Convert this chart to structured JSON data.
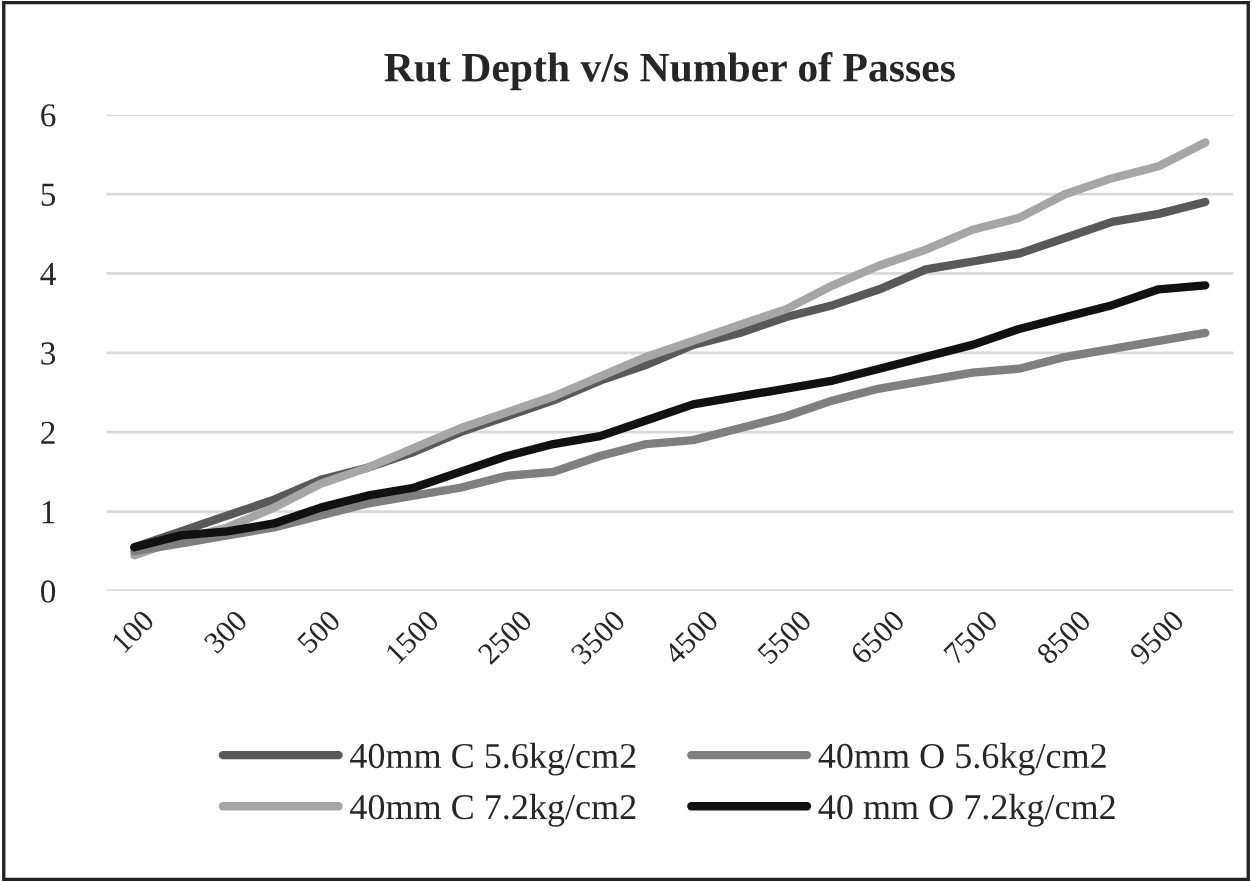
{
  "chart_data": {
    "type": "line",
    "title": "Rut Depth v/s Number of Passes",
    "categories": [
      "100",
      null,
      "300",
      null,
      "500",
      null,
      "1500",
      null,
      "2500",
      null,
      "3500",
      null,
      "4500",
      null,
      "5500",
      null,
      "6500",
      null,
      "7500",
      null,
      "8500",
      null,
      "9500",
      null
    ],
    "series": [
      {
        "name": "40mm C 5.6kg/cm2",
        "color": "#595959",
        "values": [
          0.55,
          0.75,
          0.95,
          1.15,
          1.4,
          1.55,
          1.75,
          2.0,
          2.2,
          2.4,
          2.65,
          2.85,
          3.1,
          3.25,
          3.45,
          3.6,
          3.8,
          4.05,
          4.15,
          4.25,
          4.45,
          4.65,
          4.75,
          4.9
        ]
      },
      {
        "name": "40mm C 7.2kg/cm2",
        "color": "#a6a6a6",
        "values": [
          0.45,
          0.65,
          0.8,
          1.05,
          1.35,
          1.55,
          1.8,
          2.05,
          2.25,
          2.45,
          2.7,
          2.95,
          3.15,
          3.35,
          3.55,
          3.85,
          4.1,
          4.3,
          4.55,
          4.7,
          5.0,
          5.2,
          5.35,
          5.65
        ]
      },
      {
        "name": "40mm O 5.6kg/cm2",
        "color": "#7f7f7f",
        "values": [
          0.5,
          0.6,
          0.7,
          0.8,
          0.95,
          1.1,
          1.2,
          1.3,
          1.45,
          1.5,
          1.7,
          1.85,
          1.9,
          2.05,
          2.2,
          2.4,
          2.55,
          2.65,
          2.75,
          2.8,
          2.95,
          3.05,
          3.15,
          3.25
        ]
      },
      {
        "name": "40 mm O 7.2kg/cm2",
        "color": "#111111",
        "values": [
          0.55,
          0.7,
          0.75,
          0.85,
          1.05,
          1.2,
          1.3,
          1.5,
          1.7,
          1.85,
          1.95,
          2.15,
          2.35,
          2.45,
          2.55,
          2.65,
          2.8,
          2.95,
          3.1,
          3.3,
          3.45,
          3.6,
          3.8,
          3.85
        ]
      }
    ],
    "ylim": [
      0,
      6
    ],
    "yticks": [
      0,
      1,
      2,
      3,
      4,
      5,
      6
    ],
    "grid": "y",
    "legend": "bottom",
    "marker": "none",
    "line_style": "solid"
  }
}
